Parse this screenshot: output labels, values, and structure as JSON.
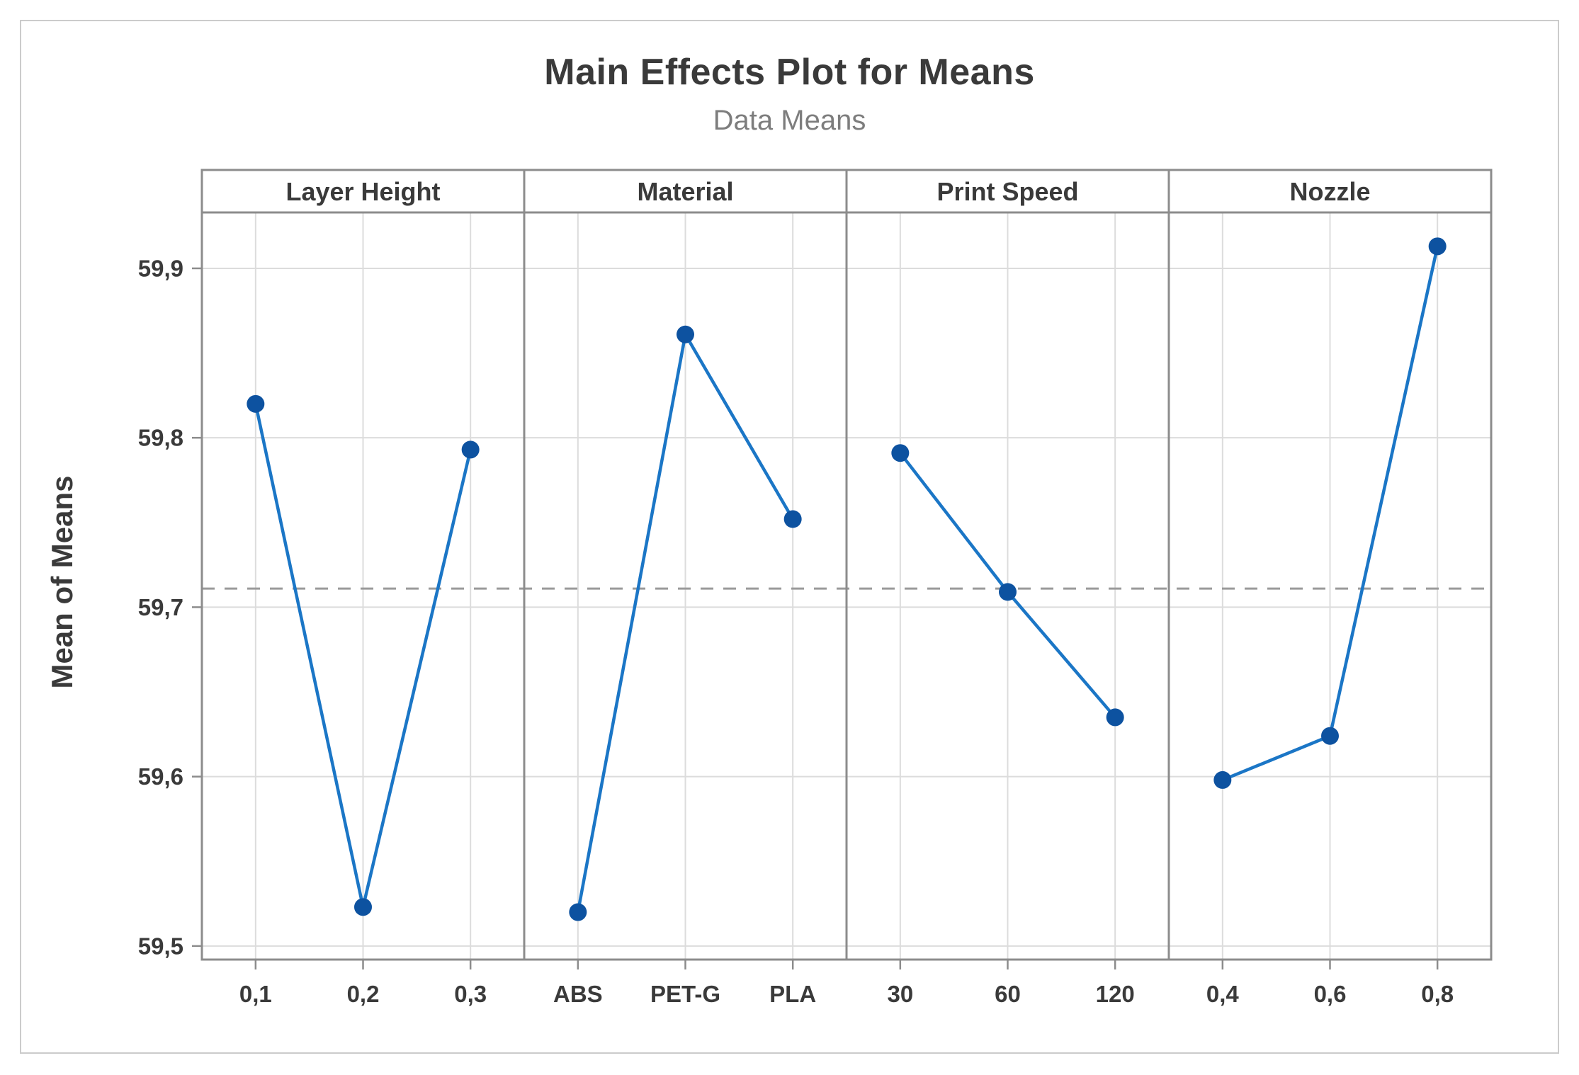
{
  "chart_data": {
    "type": "line",
    "variant": "main-effects-plot",
    "title": "Main Effects Plot for Means",
    "subtitle": "Data Means",
    "ylabel": "Mean of Means",
    "decimal_separator": ",",
    "grid": true,
    "legend": false,
    "ylim": [
      59.492,
      59.933
    ],
    "ytick_labels": [
      "59,9",
      "59,8",
      "59,7",
      "59,6",
      "59,5"
    ],
    "ytick_values": [
      59.9,
      59.8,
      59.7,
      59.6,
      59.5
    ],
    "overall_mean": 59.711,
    "panels": [
      {
        "label": "Layer Height",
        "categories": [
          "0,1",
          "0,2",
          "0,3"
        ],
        "values": [
          59.82,
          59.523,
          59.793
        ]
      },
      {
        "label": "Material",
        "categories": [
          "ABS",
          "PET-G",
          "PLA"
        ],
        "values": [
          59.52,
          59.861,
          59.752
        ]
      },
      {
        "label": "Print Speed",
        "categories": [
          "30",
          "60",
          "120"
        ],
        "values": [
          59.791,
          59.709,
          59.635
        ]
      },
      {
        "label": "Nozzle",
        "categories": [
          "0,4",
          "0,6",
          "0,8"
        ],
        "values": [
          59.598,
          59.624,
          59.913
        ]
      }
    ]
  },
  "colors": {
    "line": "#1b76c6",
    "marker": "#0d52a0",
    "grid": "#dcdcdc",
    "panel_border": "#8c8c8c",
    "mean_line": "#9a9a9a",
    "title_text": "#3a3a3a",
    "subtitle_text": "#7d7d7d",
    "tick_text": "#3a3a3a",
    "figure_border": "#cbcbcb"
  }
}
